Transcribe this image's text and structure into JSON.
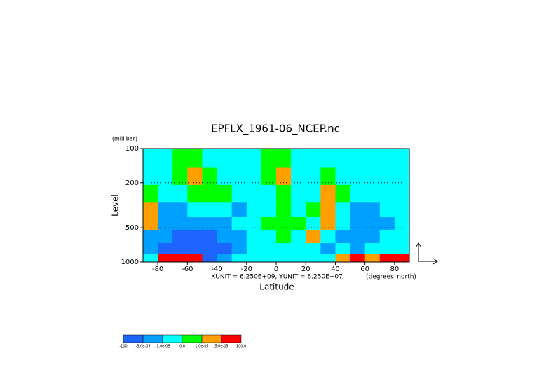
{
  "chart_data": {
    "type": "filled-contour",
    "title": "EPFLX_1961-06_NCEP.nc",
    "xlabel": "Latitude",
    "ylabel": "Level",
    "y_unit_label": "(millibar)",
    "x_unit_label": "(degrees_north)",
    "vector_scale_note": "XUNIT = 6.250E+09, YUNIT = 6.250E+07",
    "x": [
      -85,
      -75,
      -65,
      -55,
      -45,
      -35,
      -25,
      -15,
      -5,
      5,
      15,
      25,
      35,
      45,
      55,
      65,
      75,
      85
    ],
    "levels": [
      125,
      175,
      250,
      350,
      450,
      600,
      775,
      925
    ],
    "z": [
      [
        -5e-06,
        -5e-06,
        5e-06,
        5e-06,
        -5e-06,
        -5e-06,
        -5e-06,
        -5e-06,
        5e-06,
        5e-06,
        -5e-06,
        -5e-06,
        -5e-06,
        -5e-06,
        -5e-06,
        -5e-06,
        -5e-06,
        -5e-06
      ],
      [
        -5e-06,
        -5e-06,
        5e-06,
        3e-05,
        5e-06,
        -5e-06,
        -5e-06,
        -5e-06,
        5e-06,
        3e-05,
        -5e-06,
        -5e-06,
        5e-06,
        -5e-06,
        -5e-06,
        -5e-06,
        -5e-06,
        -5e-06
      ],
      [
        5e-06,
        -5e-06,
        -5e-06,
        5e-06,
        5e-06,
        5e-06,
        -5e-06,
        -5e-06,
        -5e-06,
        5e-06,
        -5e-06,
        -5e-06,
        3e-05,
        5e-06,
        -5e-06,
        -5e-06,
        -5e-06,
        -5e-06
      ],
      [
        3e-05,
        -3e-05,
        -3e-05,
        -5e-06,
        -5e-06,
        -5e-06,
        -3e-05,
        -5e-06,
        -5e-06,
        5e-06,
        -5e-06,
        5e-06,
        3e-05,
        -5e-06,
        -3e-05,
        -3e-05,
        -5e-06,
        -5e-06
      ],
      [
        3e-05,
        -3e-05,
        -3e-05,
        -3e-05,
        -3e-05,
        -3e-05,
        -5e-06,
        -5e-06,
        5e-06,
        5e-06,
        5e-06,
        -5e-06,
        3e-05,
        -5e-06,
        -3e-05,
        -3e-05,
        -3e-05,
        -5e-06
      ],
      [
        -3e-05,
        -3e-05,
        -0.0001,
        -0.0001,
        -0.0001,
        -3e-05,
        -3e-05,
        -5e-06,
        -5e-06,
        5e-06,
        -5e-06,
        3e-05,
        -5e-06,
        -3e-05,
        -3e-05,
        -3e-05,
        -5e-06,
        -5e-06
      ],
      [
        -3e-05,
        -0.0001,
        -0.0001,
        -0.0001,
        -0.0001,
        -0.0001,
        -3e-05,
        -5e-06,
        -5e-06,
        -5e-06,
        -5e-06,
        -5e-06,
        -3e-05,
        -5e-06,
        -3e-05,
        -5e-06,
        -5e-06,
        -5e-06
      ],
      [
        -5e-06,
        0.0001,
        0.0001,
        0.0001,
        -0.0001,
        -3e-05,
        -5e-06,
        -5e-06,
        -5e-06,
        -5e-06,
        -5e-06,
        -5e-06,
        -5e-06,
        3e-05,
        0.0001,
        3e-05,
        0.0001,
        0.0001
      ]
    ],
    "xlim": [
      -90,
      90
    ],
    "xticks": [
      -80,
      -60,
      -40,
      -20,
      0,
      20,
      40,
      60,
      80
    ],
    "ylim": [
      1000,
      100
    ],
    "y_log_scale": true,
    "yticks": [
      100,
      200,
      500,
      1000
    ],
    "colorbar_levels": [
      -100,
      {
        "value": -5e-05,
        "label": "-5.0e-05"
      },
      {
        "value": -1e-05,
        "label": "-1.0e-05"
      },
      {
        "value": 0,
        "label": "0.0"
      },
      {
        "value": 1e-05,
        "label": "1.0e-05"
      },
      {
        "value": 5e-05,
        "label": "5.0e-05"
      },
      {
        "value": 100,
        "label": "100.0"
      }
    ],
    "colors": [
      "#1e64ff",
      "#00a0ff",
      "#00ffff",
      "#00ff00",
      "#ffa000",
      "#ff0000"
    ]
  }
}
